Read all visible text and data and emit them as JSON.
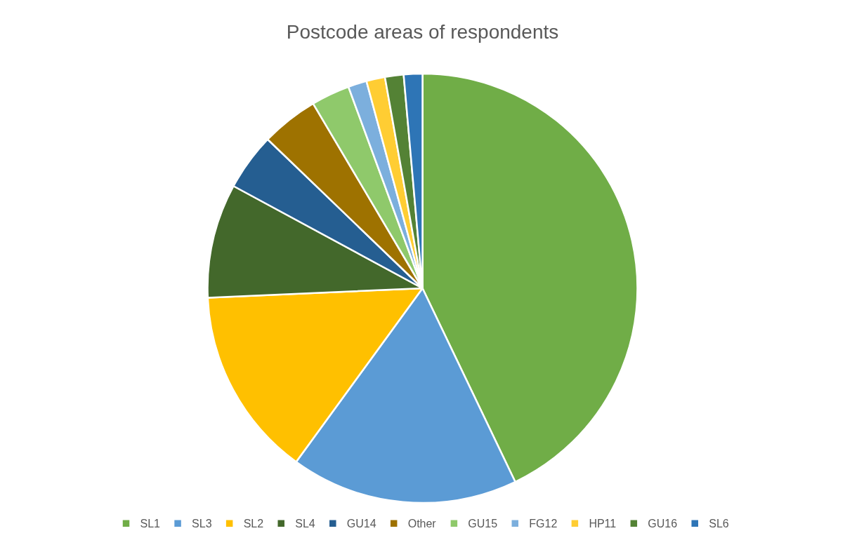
{
  "chart_data": {
    "type": "pie",
    "title": "Postcode areas of respondents",
    "categories": [
      "SL1",
      "SL3",
      "SL2",
      "SL4",
      "GU14",
      "Other",
      "GU15",
      "FG12",
      "HP11",
      "GU16",
      "SL6"
    ],
    "values": [
      42.9,
      17.1,
      14.3,
      8.6,
      4.3,
      4.3,
      2.9,
      1.4,
      1.4,
      1.4,
      1.4
    ],
    "colors": [
      "#70ad47",
      "#5b9bd5",
      "#ffc000",
      "#43682b",
      "#255e91",
      "#9e7200",
      "#8fc96b",
      "#7cafdd",
      "#ffcd33",
      "#548235",
      "#2e75b6"
    ],
    "legend": "bottom"
  }
}
